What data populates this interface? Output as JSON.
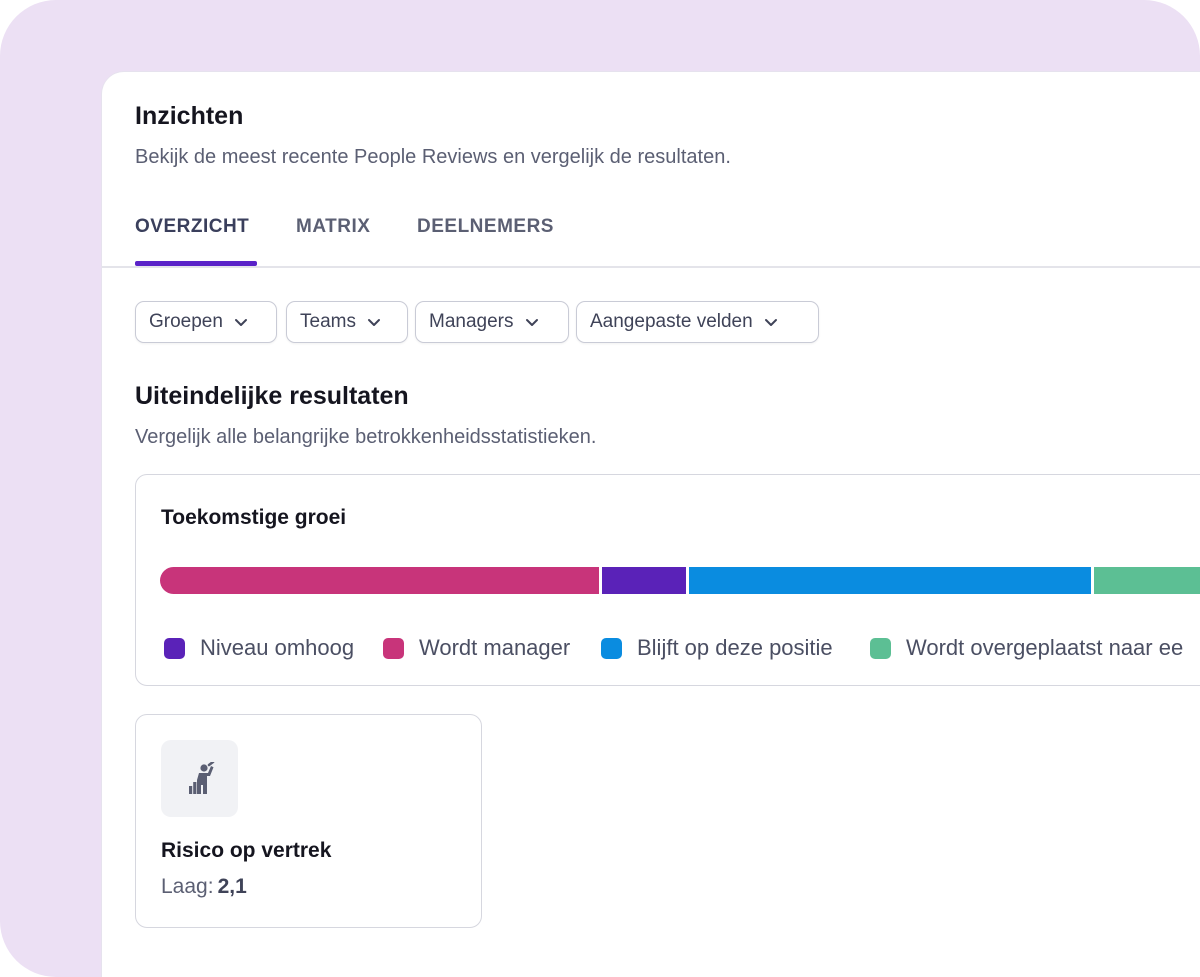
{
  "header": {
    "title": "Inzichten",
    "subtitle": "Bekijk de meest recente People Reviews en vergelijk de resultaten."
  },
  "tabs": [
    {
      "label": "OVERZICHT",
      "active": true
    },
    {
      "label": "MATRIX",
      "active": false
    },
    {
      "label": "DEELNEMERS",
      "active": false
    }
  ],
  "filters": [
    {
      "label": "Groepen",
      "icon": "chevron-down-icon"
    },
    {
      "label": "Teams",
      "icon": "chevron-down-icon"
    },
    {
      "label": "Managers",
      "icon": "chevron-down-icon"
    },
    {
      "label": "Aangepaste velden",
      "icon": "chevron-down-icon"
    }
  ],
  "results": {
    "title": "Uiteindelijke resultaten",
    "subtitle": "Vergelijk alle belangrijke betrokkenheidsstatistieken."
  },
  "growth": {
    "title": "Toekomstige groei",
    "bar_segments": [
      {
        "series": "Wordt manager",
        "share": 0.417,
        "color": "#c8347a"
      },
      {
        "series": "Niveau omhoog",
        "share": 0.082,
        "color": "#5a22b8"
      },
      {
        "series": "Blijft op deze positie",
        "share": 0.382,
        "color": "#0a8ce0"
      },
      {
        "series": "Wordt overgeplaatst naar ee",
        "share": 0.119,
        "color": "#5cbf94"
      }
    ],
    "legend": [
      {
        "label": "Niveau omhoog",
        "color": "#5a22b8"
      },
      {
        "label": "Wordt manager",
        "color": "#c8347a"
      },
      {
        "label": "Blijft op deze positie",
        "color": "#0a8ce0"
      },
      {
        "label": "Wordt overgeplaatst naar ee",
        "color": "#5cbf94"
      }
    ]
  },
  "risk": {
    "icon": "person-leaving-icon",
    "title": "Risico op vertrek",
    "label": "Laag:",
    "value": "2,1"
  },
  "colors": {
    "accent": "#5a22c8",
    "background": "#ece0f4"
  }
}
